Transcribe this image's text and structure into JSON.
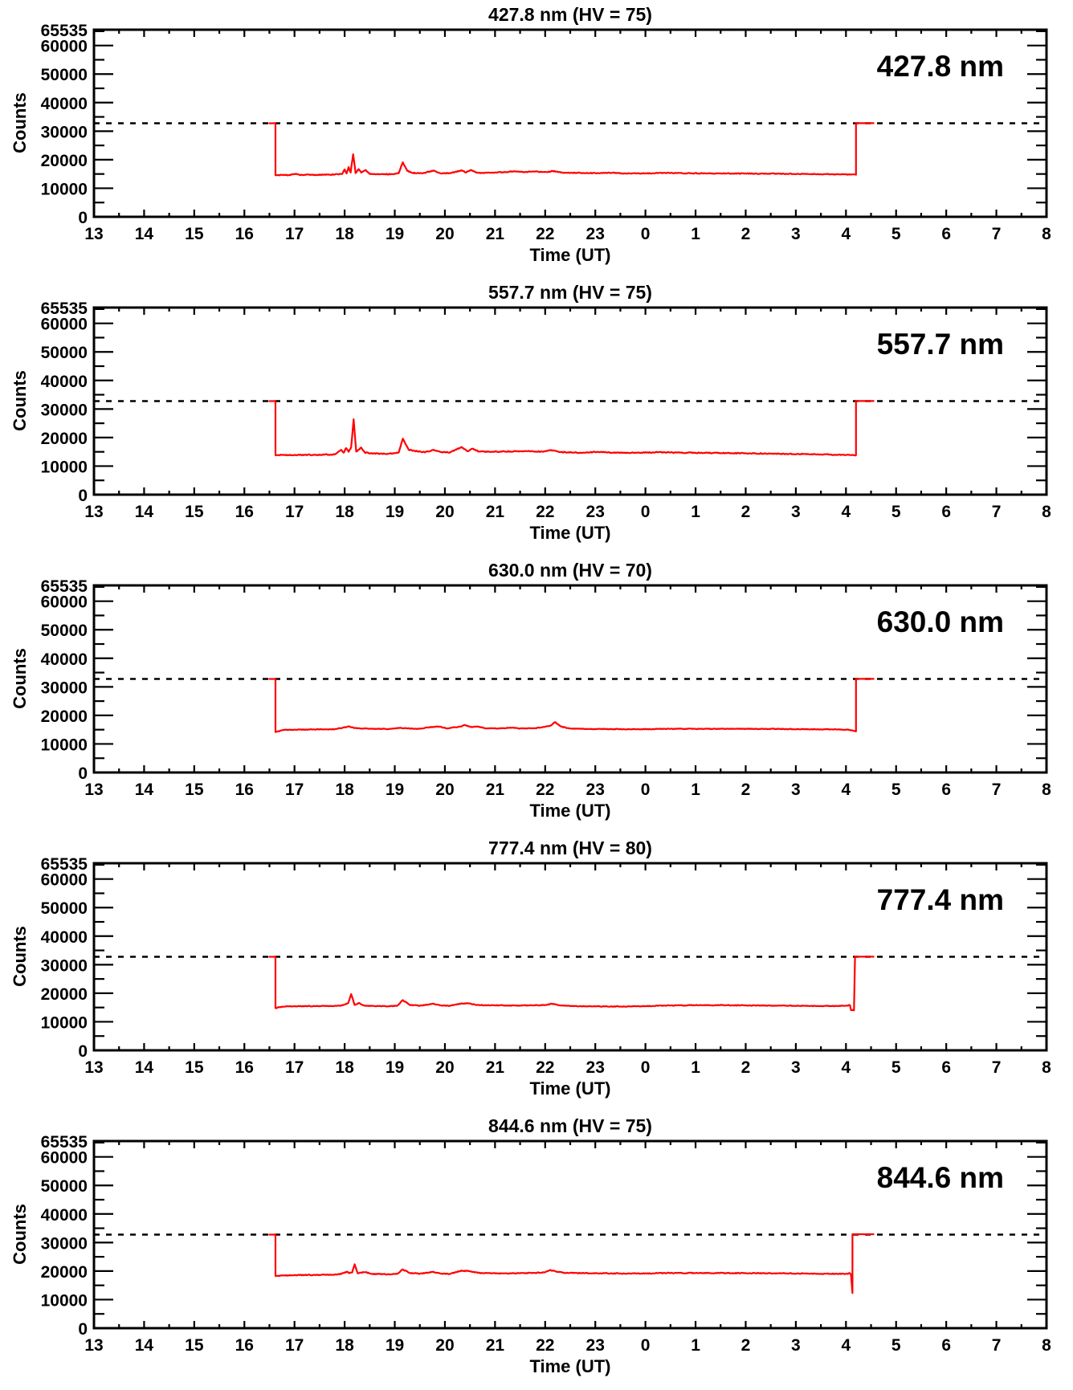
{
  "page": {
    "background": "#ffffff",
    "text_color": "#000000"
  },
  "chart_data": [
    {
      "type": "line",
      "title": "427.8 nm (HV = 75)",
      "big_label": "427.8 nm",
      "wavelength_nm": 427.8,
      "hv": 75,
      "xlabel": "Time (UT)",
      "ylabel": "Counts",
      "xlim": [
        13,
        32
      ],
      "ylim": [
        0,
        65535
      ],
      "x_tick_labels": [
        "13",
        "14",
        "15",
        "16",
        "17",
        "18",
        "19",
        "20",
        "21",
        "22",
        "23",
        "0",
        "1",
        "2",
        "3",
        "4",
        "5",
        "6",
        "7",
        "8"
      ],
      "x_minor_step": 0.5,
      "y_tick_values": [
        0,
        10000,
        20000,
        30000,
        40000,
        50000,
        60000,
        65535
      ],
      "y_tick_labels": [
        "0",
        "10000",
        "20000",
        "30000",
        "40000",
        "50000",
        "60000",
        "65535"
      ],
      "y_minor_step": 5000,
      "dashed_line": 32768,
      "line_color": "#ff0000",
      "noise_amp": 140,
      "anchors": [
        [
          16.5,
          32768
        ],
        [
          16.62,
          32768
        ],
        [
          16.62,
          14600
        ],
        [
          16.9,
          14650
        ],
        [
          17.03,
          15100
        ],
        [
          17.1,
          14700
        ],
        [
          17.35,
          14700
        ],
        [
          17.7,
          14750
        ],
        [
          17.95,
          15000
        ],
        [
          18.0,
          16600
        ],
        [
          18.04,
          15200
        ],
        [
          18.08,
          17400
        ],
        [
          18.12,
          15500
        ],
        [
          18.17,
          21900
        ],
        [
          18.22,
          15300
        ],
        [
          18.28,
          16700
        ],
        [
          18.33,
          15500
        ],
        [
          18.42,
          16400
        ],
        [
          18.5,
          15000
        ],
        [
          18.7,
          14900
        ],
        [
          18.95,
          14950
        ],
        [
          19.08,
          15300
        ],
        [
          19.16,
          19100
        ],
        [
          19.25,
          16100
        ],
        [
          19.35,
          15400
        ],
        [
          19.55,
          15200
        ],
        [
          19.78,
          16200
        ],
        [
          19.9,
          15300
        ],
        [
          20.1,
          15250
        ],
        [
          20.33,
          16300
        ],
        [
          20.42,
          15500
        ],
        [
          20.52,
          16400
        ],
        [
          20.65,
          15400
        ],
        [
          20.9,
          15450
        ],
        [
          21.15,
          15600
        ],
        [
          21.35,
          15900
        ],
        [
          21.55,
          15700
        ],
        [
          21.8,
          15850
        ],
        [
          22.05,
          15650
        ],
        [
          22.15,
          16050
        ],
        [
          22.35,
          15500
        ],
        [
          22.7,
          15400
        ],
        [
          23.05,
          15300
        ],
        [
          23.35,
          15450
        ],
        [
          23.6,
          15200
        ],
        [
          24.0,
          15250
        ],
        [
          24.4,
          15350
        ],
        [
          24.9,
          15250
        ],
        [
          25.5,
          15200
        ],
        [
          26.0,
          15150
        ],
        [
          26.6,
          15100
        ],
        [
          27.2,
          15000
        ],
        [
          27.7,
          14900
        ],
        [
          28.1,
          14800
        ],
        [
          28.2,
          14750
        ],
        [
          28.2,
          32800
        ],
        [
          28.55,
          32800
        ]
      ]
    },
    {
      "type": "line",
      "title": "557.7 nm (HV = 75)",
      "big_label": "557.7 nm",
      "wavelength_nm": 557.7,
      "hv": 75,
      "xlabel": "Time (UT)",
      "ylabel": "Counts",
      "xlim": [
        13,
        32
      ],
      "ylim": [
        0,
        65535
      ],
      "x_tick_labels": [
        "13",
        "14",
        "15",
        "16",
        "17",
        "18",
        "19",
        "20",
        "21",
        "22",
        "23",
        "0",
        "1",
        "2",
        "3",
        "4",
        "5",
        "6",
        "7",
        "8"
      ],
      "x_minor_step": 0.5,
      "y_tick_values": [
        0,
        10000,
        20000,
        30000,
        40000,
        50000,
        60000,
        65535
      ],
      "y_tick_labels": [
        "0",
        "10000",
        "20000",
        "30000",
        "40000",
        "50000",
        "60000",
        "65535"
      ],
      "y_minor_step": 5000,
      "dashed_line": 32768,
      "line_color": "#ff0000",
      "noise_amp": 160,
      "anchors": [
        [
          16.5,
          32768
        ],
        [
          16.62,
          32768
        ],
        [
          16.62,
          13850
        ],
        [
          17.0,
          13900
        ],
        [
          17.4,
          13950
        ],
        [
          17.8,
          14100
        ],
        [
          17.93,
          15700
        ],
        [
          17.98,
          14700
        ],
        [
          18.03,
          16300
        ],
        [
          18.08,
          15000
        ],
        [
          18.13,
          16600
        ],
        [
          18.18,
          26400
        ],
        [
          18.23,
          15100
        ],
        [
          18.28,
          15700
        ],
        [
          18.33,
          16500
        ],
        [
          18.4,
          14800
        ],
        [
          18.5,
          14500
        ],
        [
          18.8,
          14300
        ],
        [
          19.0,
          14500
        ],
        [
          19.08,
          14800
        ],
        [
          19.16,
          19600
        ],
        [
          19.28,
          15700
        ],
        [
          19.45,
          15200
        ],
        [
          19.6,
          14800
        ],
        [
          19.78,
          15700
        ],
        [
          19.92,
          14900
        ],
        [
          20.1,
          14800
        ],
        [
          20.33,
          16700
        ],
        [
          20.45,
          15200
        ],
        [
          20.55,
          16100
        ],
        [
          20.68,
          15100
        ],
        [
          21.0,
          15050
        ],
        [
          21.3,
          15150
        ],
        [
          21.6,
          15250
        ],
        [
          21.95,
          15050
        ],
        [
          22.12,
          15600
        ],
        [
          22.3,
          14900
        ],
        [
          22.7,
          14700
        ],
        [
          23.05,
          15000
        ],
        [
          23.35,
          14700
        ],
        [
          23.8,
          14700
        ],
        [
          24.2,
          14850
        ],
        [
          24.7,
          14700
        ],
        [
          25.2,
          14650
        ],
        [
          25.7,
          14550
        ],
        [
          26.2,
          14450
        ],
        [
          26.7,
          14300
        ],
        [
          27.2,
          14200
        ],
        [
          27.7,
          14050
        ],
        [
          28.15,
          13850
        ],
        [
          28.2,
          13800
        ],
        [
          28.2,
          32800
        ],
        [
          28.55,
          32800
        ]
      ]
    },
    {
      "type": "line",
      "title": "630.0 nm (HV = 70)",
      "big_label": "630.0 nm",
      "wavelength_nm": 630.0,
      "hv": 70,
      "xlabel": "Time (UT)",
      "ylabel": "Counts",
      "xlim": [
        13,
        32
      ],
      "ylim": [
        0,
        65535
      ],
      "x_tick_labels": [
        "13",
        "14",
        "15",
        "16",
        "17",
        "18",
        "19",
        "20",
        "21",
        "22",
        "23",
        "0",
        "1",
        "2",
        "3",
        "4",
        "5",
        "6",
        "7",
        "8"
      ],
      "x_minor_step": 0.5,
      "y_tick_values": [
        0,
        10000,
        20000,
        30000,
        40000,
        50000,
        60000,
        65535
      ],
      "y_tick_labels": [
        "0",
        "10000",
        "20000",
        "30000",
        "40000",
        "50000",
        "60000",
        "65535"
      ],
      "y_minor_step": 5000,
      "dashed_line": 32768,
      "line_color": "#ff0000",
      "noise_amp": 110,
      "anchors": [
        [
          16.5,
          32768
        ],
        [
          16.62,
          32768
        ],
        [
          16.62,
          14200
        ],
        [
          16.8,
          14950
        ],
        [
          17.2,
          15050
        ],
        [
          17.8,
          15150
        ],
        [
          17.98,
          15750
        ],
        [
          18.08,
          16150
        ],
        [
          18.2,
          15550
        ],
        [
          18.5,
          15300
        ],
        [
          18.9,
          15250
        ],
        [
          19.1,
          15650
        ],
        [
          19.25,
          15450
        ],
        [
          19.5,
          15300
        ],
        [
          19.7,
          15850
        ],
        [
          19.85,
          16150
        ],
        [
          20.05,
          15450
        ],
        [
          20.3,
          16050
        ],
        [
          20.4,
          16650
        ],
        [
          20.52,
          15900
        ],
        [
          20.65,
          16150
        ],
        [
          20.8,
          15500
        ],
        [
          21.1,
          15400
        ],
        [
          21.3,
          15750
        ],
        [
          21.5,
          15400
        ],
        [
          21.8,
          15500
        ],
        [
          22.0,
          16050
        ],
        [
          22.1,
          16350
        ],
        [
          22.2,
          17650
        ],
        [
          22.32,
          16050
        ],
        [
          22.5,
          15400
        ],
        [
          22.85,
          15250
        ],
        [
          23.3,
          15200
        ],
        [
          23.8,
          15150
        ],
        [
          24.3,
          15250
        ],
        [
          24.8,
          15300
        ],
        [
          25.4,
          15300
        ],
        [
          26.0,
          15300
        ],
        [
          26.6,
          15250
        ],
        [
          27.2,
          15150
        ],
        [
          27.7,
          15100
        ],
        [
          28.05,
          15000
        ],
        [
          28.18,
          14500
        ],
        [
          28.2,
          14400
        ],
        [
          28.2,
          32800
        ],
        [
          28.55,
          32800
        ]
      ]
    },
    {
      "type": "line",
      "title": "777.4 nm (HV = 80)",
      "big_label": "777.4 nm",
      "wavelength_nm": 777.4,
      "hv": 80,
      "xlabel": "Time (UT)",
      "ylabel": "Counts",
      "xlim": [
        13,
        32
      ],
      "ylim": [
        0,
        65535
      ],
      "x_tick_labels": [
        "13",
        "14",
        "15",
        "16",
        "17",
        "18",
        "19",
        "20",
        "21",
        "22",
        "23",
        "0",
        "1",
        "2",
        "3",
        "4",
        "5",
        "6",
        "7",
        "8"
      ],
      "x_minor_step": 0.5,
      "y_tick_values": [
        0,
        10000,
        20000,
        30000,
        40000,
        50000,
        60000,
        65535
      ],
      "y_tick_labels": [
        "0",
        "10000",
        "20000",
        "30000",
        "40000",
        "50000",
        "60000",
        "65535"
      ],
      "y_minor_step": 5000,
      "dashed_line": 32768,
      "line_color": "#ff0000",
      "noise_amp": 120,
      "anchors": [
        [
          16.5,
          32768
        ],
        [
          16.62,
          32768
        ],
        [
          16.62,
          14800
        ],
        [
          16.75,
          15300
        ],
        [
          17.0,
          15450
        ],
        [
          17.5,
          15500
        ],
        [
          17.9,
          15600
        ],
        [
          18.0,
          16000
        ],
        [
          18.07,
          16500
        ],
        [
          18.13,
          19700
        ],
        [
          18.2,
          15900
        ],
        [
          18.28,
          16600
        ],
        [
          18.38,
          15700
        ],
        [
          18.6,
          15500
        ],
        [
          18.9,
          15450
        ],
        [
          19.05,
          15600
        ],
        [
          19.16,
          17600
        ],
        [
          19.3,
          15900
        ],
        [
          19.5,
          15600
        ],
        [
          19.78,
          16300
        ],
        [
          19.92,
          15700
        ],
        [
          20.1,
          15600
        ],
        [
          20.33,
          16450
        ],
        [
          20.5,
          16400
        ],
        [
          20.62,
          15900
        ],
        [
          20.85,
          15800
        ],
        [
          21.1,
          15750
        ],
        [
          21.4,
          15700
        ],
        [
          21.7,
          15750
        ],
        [
          22.0,
          15850
        ],
        [
          22.13,
          16300
        ],
        [
          22.3,
          15700
        ],
        [
          22.6,
          15500
        ],
        [
          23.0,
          15400
        ],
        [
          23.5,
          15350
        ],
        [
          24.0,
          15500
        ],
        [
          24.5,
          15700
        ],
        [
          25.0,
          15800
        ],
        [
          25.6,
          15800
        ],
        [
          26.2,
          15700
        ],
        [
          26.8,
          15650
        ],
        [
          27.3,
          15550
        ],
        [
          27.8,
          15500
        ],
        [
          28.0,
          15650
        ],
        [
          28.08,
          15800
        ],
        [
          28.1,
          14100
        ],
        [
          28.16,
          14000
        ],
        [
          28.18,
          32800
        ],
        [
          28.55,
          32800
        ]
      ]
    },
    {
      "type": "line",
      "title": "844.6 nm (HV = 75)",
      "big_label": "844.6 nm",
      "wavelength_nm": 844.6,
      "hv": 75,
      "xlabel": "Time (UT)",
      "ylabel": "Counts",
      "xlim": [
        13,
        32
      ],
      "ylim": [
        0,
        65535
      ],
      "x_tick_labels": [
        "13",
        "14",
        "15",
        "16",
        "17",
        "18",
        "19",
        "20",
        "21",
        "22",
        "23",
        "0",
        "1",
        "2",
        "3",
        "4",
        "5",
        "6",
        "7",
        "8"
      ],
      "x_minor_step": 0.5,
      "y_tick_values": [
        0,
        10000,
        20000,
        30000,
        40000,
        50000,
        60000,
        65535
      ],
      "y_tick_labels": [
        "0",
        "10000",
        "20000",
        "30000",
        "40000",
        "50000",
        "60000",
        "65535"
      ],
      "y_minor_step": 5000,
      "dashed_line": 32768,
      "line_color": "#ff0000",
      "noise_amp": 150,
      "anchors": [
        [
          16.5,
          32768
        ],
        [
          16.62,
          32768
        ],
        [
          16.62,
          18300
        ],
        [
          17.0,
          18600
        ],
        [
          17.5,
          18650
        ],
        [
          17.9,
          18850
        ],
        [
          17.98,
          19300
        ],
        [
          18.04,
          19800
        ],
        [
          18.1,
          19300
        ],
        [
          18.15,
          19500
        ],
        [
          18.2,
          22400
        ],
        [
          18.26,
          19200
        ],
        [
          18.32,
          19450
        ],
        [
          18.42,
          19600
        ],
        [
          18.55,
          19000
        ],
        [
          18.85,
          18850
        ],
        [
          19.05,
          19000
        ],
        [
          19.16,
          20600
        ],
        [
          19.3,
          19300
        ],
        [
          19.5,
          19050
        ],
        [
          19.78,
          19700
        ],
        [
          19.92,
          19100
        ],
        [
          20.1,
          19000
        ],
        [
          20.33,
          20200
        ],
        [
          20.5,
          19900
        ],
        [
          20.65,
          19400
        ],
        [
          20.9,
          19250
        ],
        [
          21.2,
          19200
        ],
        [
          21.5,
          19250
        ],
        [
          21.8,
          19350
        ],
        [
          22.0,
          19600
        ],
        [
          22.1,
          20400
        ],
        [
          22.22,
          19800
        ],
        [
          22.38,
          19400
        ],
        [
          22.7,
          19250
        ],
        [
          23.1,
          19250
        ],
        [
          23.5,
          19150
        ],
        [
          24.0,
          19200
        ],
        [
          24.5,
          19300
        ],
        [
          25.0,
          19300
        ],
        [
          25.6,
          19300
        ],
        [
          26.2,
          19250
        ],
        [
          26.8,
          19200
        ],
        [
          27.3,
          19100
        ],
        [
          27.8,
          19000
        ],
        [
          28.0,
          19050
        ],
        [
          28.08,
          19200
        ],
        [
          28.1,
          18700
        ],
        [
          28.13,
          12300
        ],
        [
          28.13,
          32900
        ],
        [
          28.55,
          32900
        ]
      ]
    }
  ]
}
